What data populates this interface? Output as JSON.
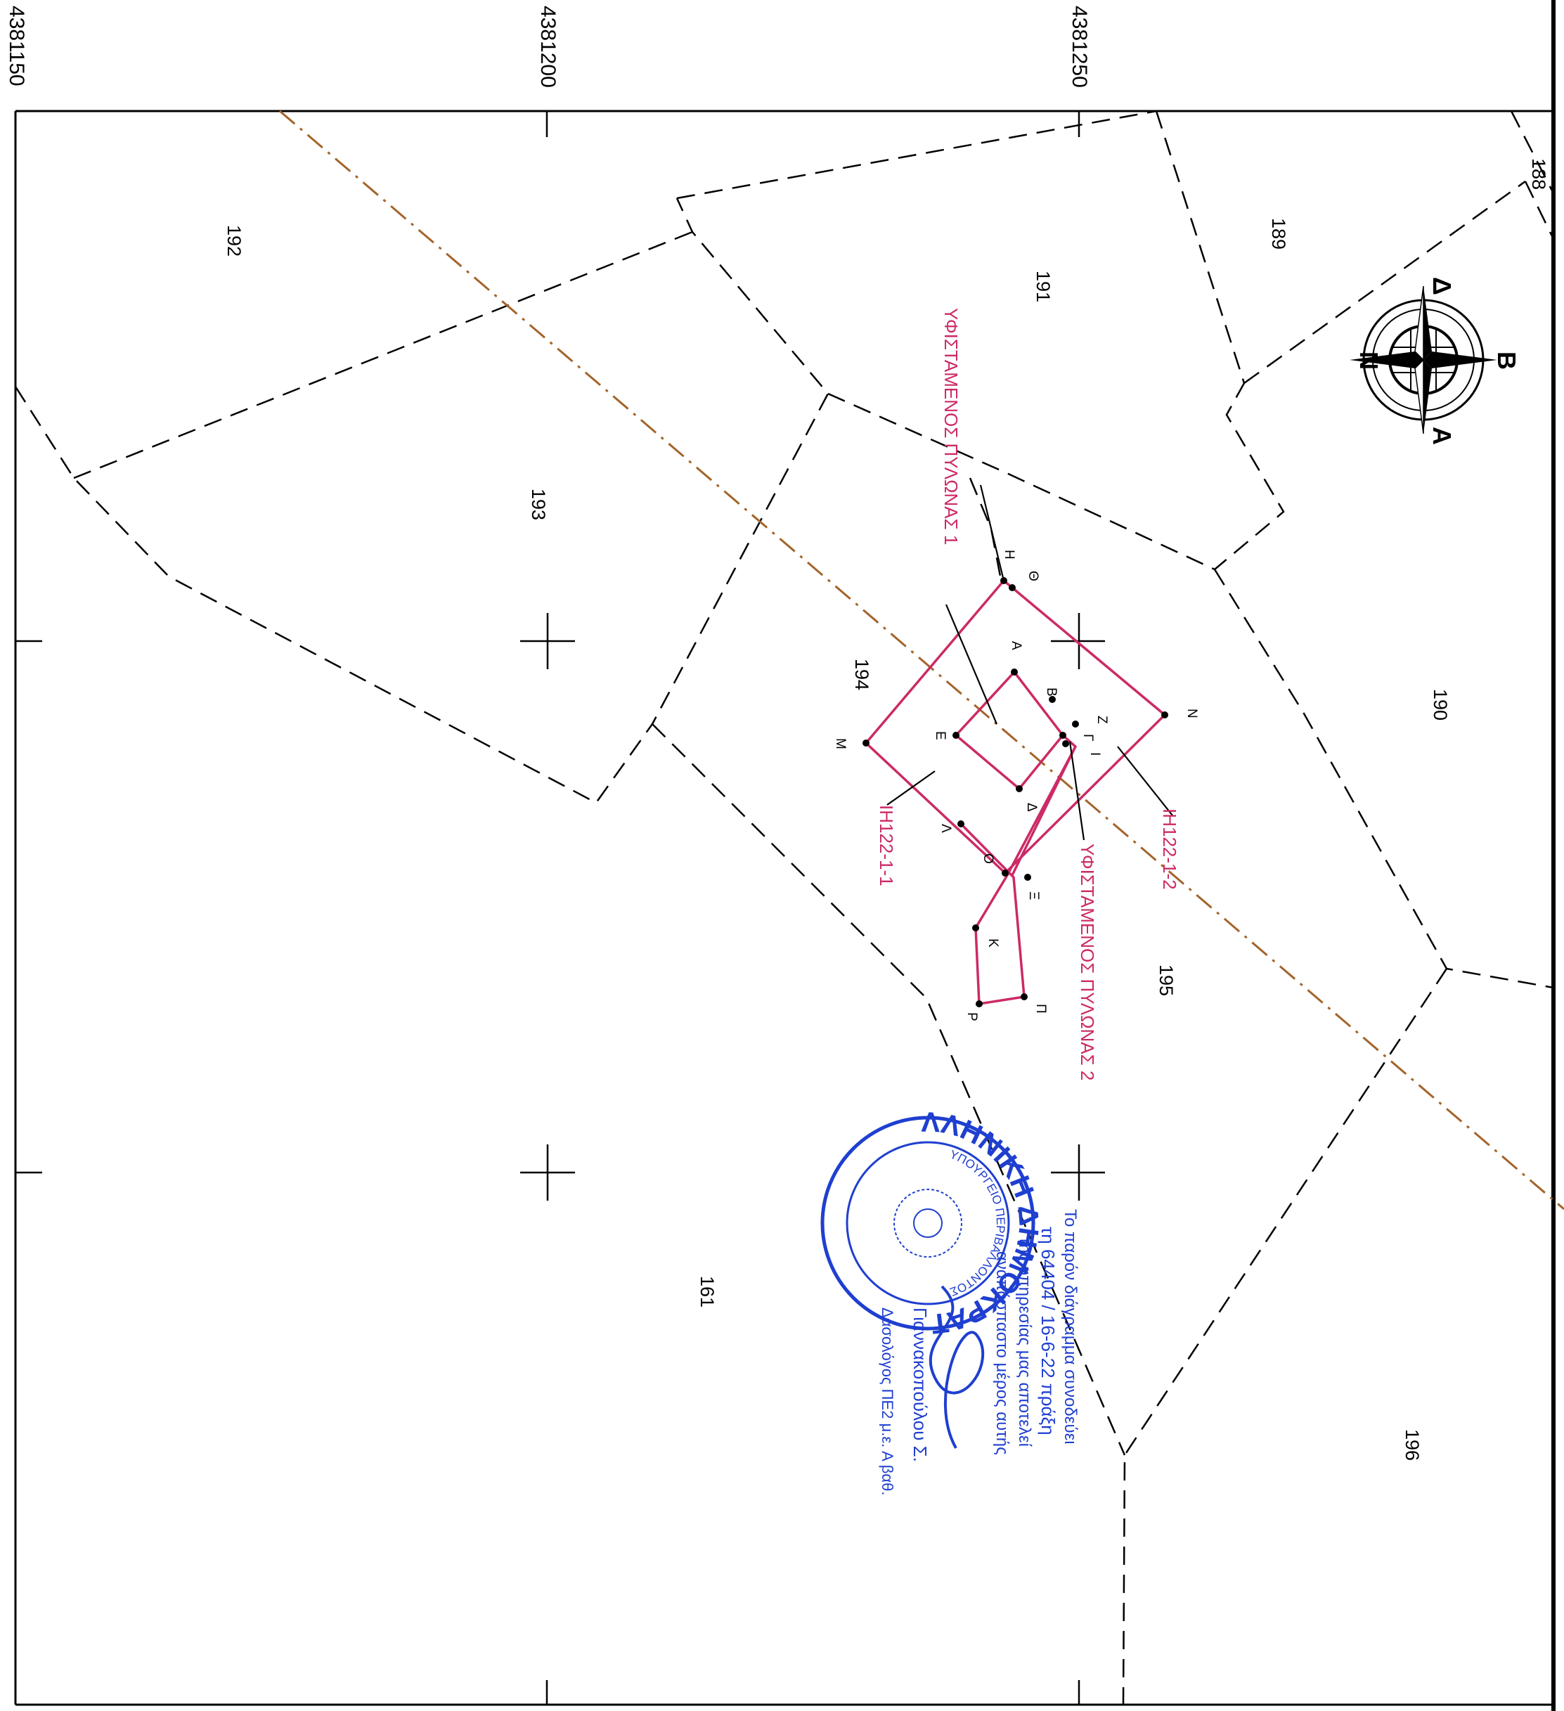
{
  "coordinates": {
    "northings": [
      "4381150",
      "4381200",
      "4381250"
    ]
  },
  "parcels": {
    "p188": "188",
    "p189": "189",
    "p190": "190",
    "p191": "191",
    "p192": "192",
    "p193": "193",
    "p194": "194",
    "p195": "195",
    "p196": "196",
    "p161": "161"
  },
  "compass": {
    "north": "Β",
    "south": "Ν",
    "east": "Α",
    "west": "Δ"
  },
  "labels": {
    "pylon1": "ΥΦΙΣΤΑΜΕΝΟΣ ΠΥΛΩΝΑΣ 1",
    "pylon2": "ΥΦΙΣΤΑΜΕΝΟΣ ΠΥΛΩΝΑΣ 2",
    "ih1": "ΙΗ122-1-1",
    "ih2": "ΙΗ122-1-2"
  },
  "points": {
    "A": "Α",
    "B": "Β",
    "G": "Γ",
    "D": "Δ",
    "E": "Ε",
    "Z": "Ζ",
    "H": "Η",
    "Th": "Θ",
    "I": "Ι",
    "K": "Κ",
    "L": "Λ",
    "M": "Μ",
    "N": "Ν",
    "X": "Ξ",
    "O": "Ο",
    "P": "Π",
    "R": "Ρ"
  },
  "stamp": {
    "ring_outer": "ΕΛΛΗΝΙΚΗ ΔΗΜΟΚΡΑΤΙΑ",
    "ring_inner": "ΥΠΟΥΡΓΕΙΟ ΠΕΡΙΒΑΛΛΟΝΤΟΣ",
    "note_line1": "Το παρόν διάγραμμα συνοδεύει",
    "note_line2": "τη 64404 / 16-6-22 πράξη",
    "note_line3": "της υπηρεσίας μας αποτελεί",
    "note_line4": "αναπόσπαστο μέρος αυτής",
    "signer": "Γιαννακοπούλου Σ.",
    "rank": "Δασολόγος ΠΕ2 μ.ε. Α βαθ."
  }
}
